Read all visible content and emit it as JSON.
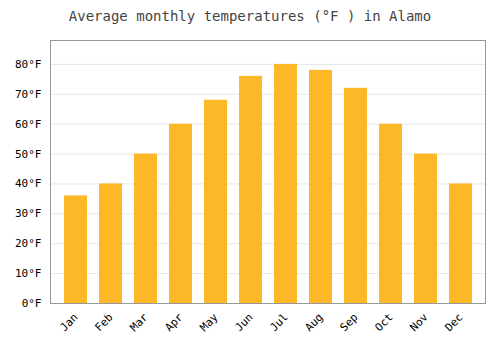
{
  "chart_data": {
    "type": "bar",
    "title": "Average monthly temperatures (°F ) in Alamo",
    "categories": [
      "Jan",
      "Feb",
      "Mar",
      "Apr",
      "May",
      "Jun",
      "Jul",
      "Aug",
      "Sep",
      "Oct",
      "Nov",
      "Dec"
    ],
    "values": [
      36,
      40,
      50,
      60,
      68,
      76,
      80,
      78,
      72,
      60,
      50,
      40
    ],
    "color": "#FDB827",
    "ylim": [
      0,
      88
    ],
    "yticks": [
      {
        "value": 0,
        "label": "0°F"
      },
      {
        "value": 10,
        "label": "10°F"
      },
      {
        "value": 20,
        "label": "20°F"
      },
      {
        "value": 30,
        "label": "30°F"
      },
      {
        "value": 40,
        "label": "40°F"
      },
      {
        "value": 50,
        "label": "50°F"
      },
      {
        "value": 60,
        "label": "60°F"
      },
      {
        "value": 70,
        "label": "70°F"
      },
      {
        "value": 80,
        "label": "80°F"
      }
    ],
    "grid": true
  }
}
